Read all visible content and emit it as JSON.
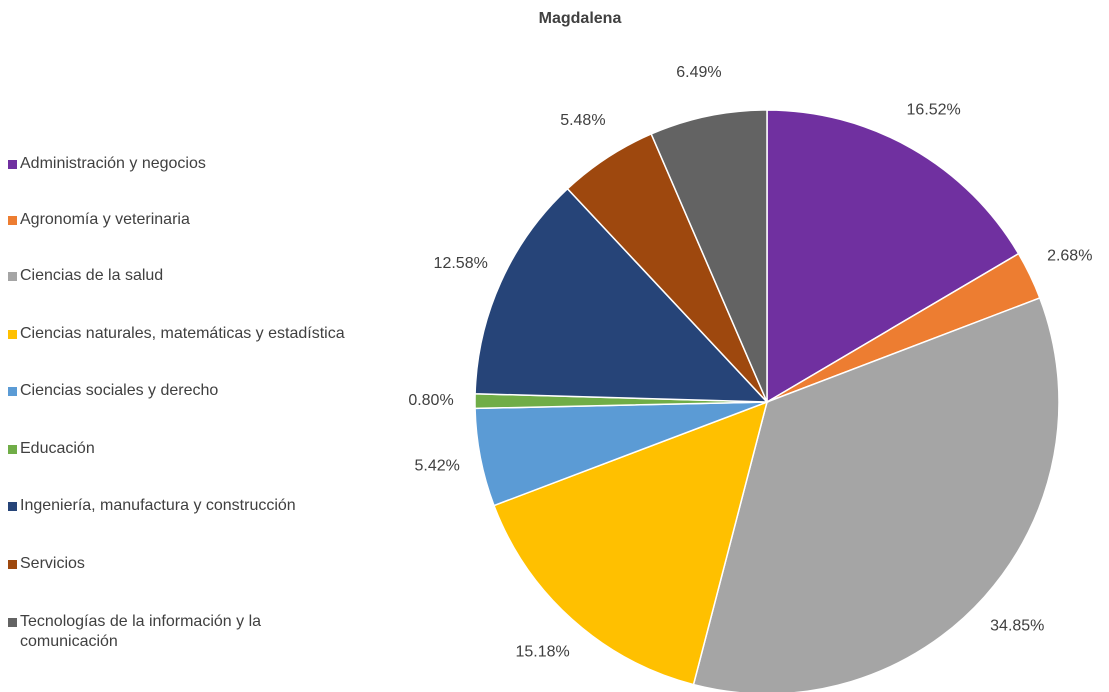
{
  "chart_data": {
    "type": "pie",
    "title": "Magdalena",
    "categories": [
      "Administración y negocios",
      "Agronomía y veterinaria",
      "Ciencias de la salud",
      "Ciencias naturales, matemáticas y estadística",
      "Ciencias sociales y derecho",
      "Educación",
      "Ingeniería, manufactura y construcción",
      "Servicios",
      "Tecnologías de la información y la comunicación"
    ],
    "values": [
      16.52,
      2.68,
      34.85,
      15.18,
      5.42,
      0.8,
      12.58,
      5.48,
      6.49
    ],
    "value_labels": [
      "16.52%",
      "2.68%",
      "34.85%",
      "15.18%",
      "5.42%",
      "0.80%",
      "12.58%",
      "5.48%",
      "6.49%"
    ],
    "colors": [
      "#7030a0",
      "#ed7d31",
      "#a5a5a5",
      "#ffc000",
      "#5b9bd5",
      "#70ad47",
      "#264478",
      "#9e480e",
      "#636363"
    ],
    "legend": "left"
  }
}
